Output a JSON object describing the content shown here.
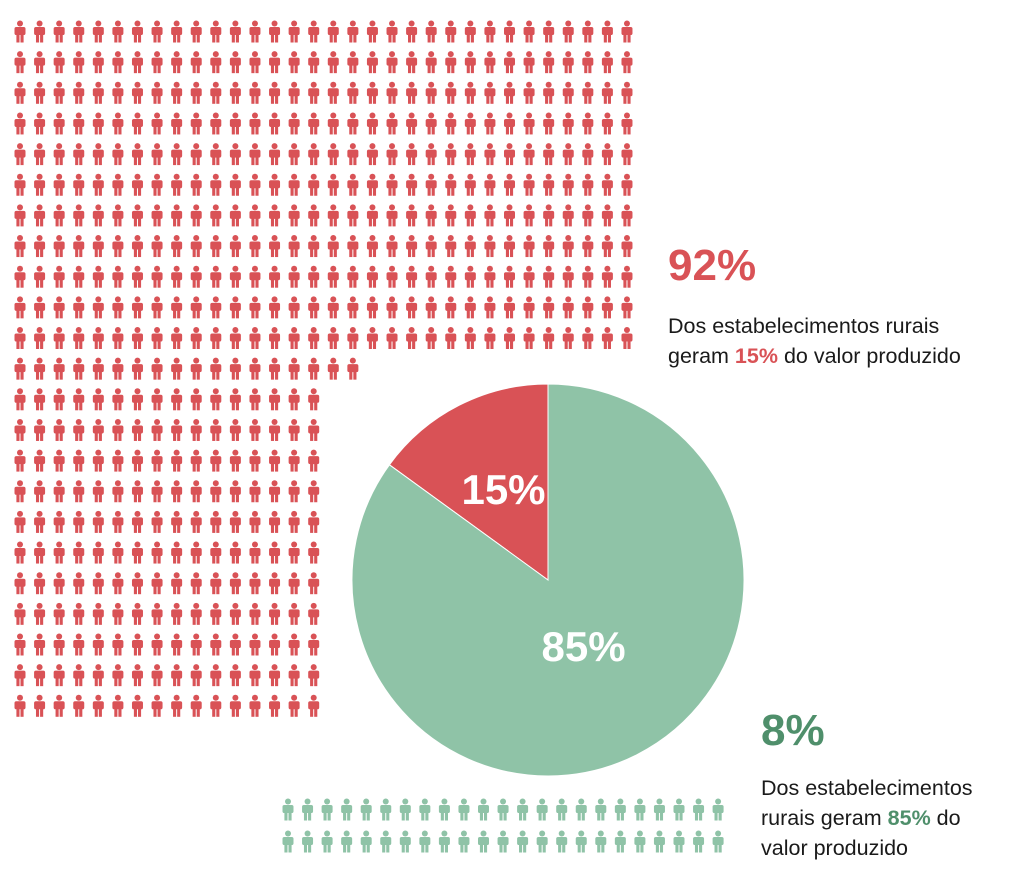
{
  "colors": {
    "red": "#d95256",
    "green": "#8fc3a7",
    "green_text": "#4f8f6b",
    "text": "#1a1a1a"
  },
  "icon": "person-icon",
  "upper_group": {
    "percent": "92%",
    "text_before": "Dos estabelecimentos rurais",
    "text_geram": "geram ",
    "highlight": "15%",
    "text_after": " do valor produzido"
  },
  "lower_group": {
    "percent": "8%",
    "text_line1": "Dos estabelecimentos",
    "text_geram": "rurais geram ",
    "highlight": "85%",
    "text_after": " do",
    "text_line3": "valor produzido"
  },
  "chart_data": {
    "type": "pie",
    "slices": [
      {
        "label": "15%",
        "value": 15,
        "color": "#d95256"
      },
      {
        "label": "85%",
        "value": 85,
        "color": "#8fc3a7"
      }
    ],
    "pictogram": [
      {
        "share_of_establishments": 92,
        "color": "#d95256"
      },
      {
        "share_of_establishments": 8,
        "color": "#8fc3a7"
      }
    ]
  }
}
